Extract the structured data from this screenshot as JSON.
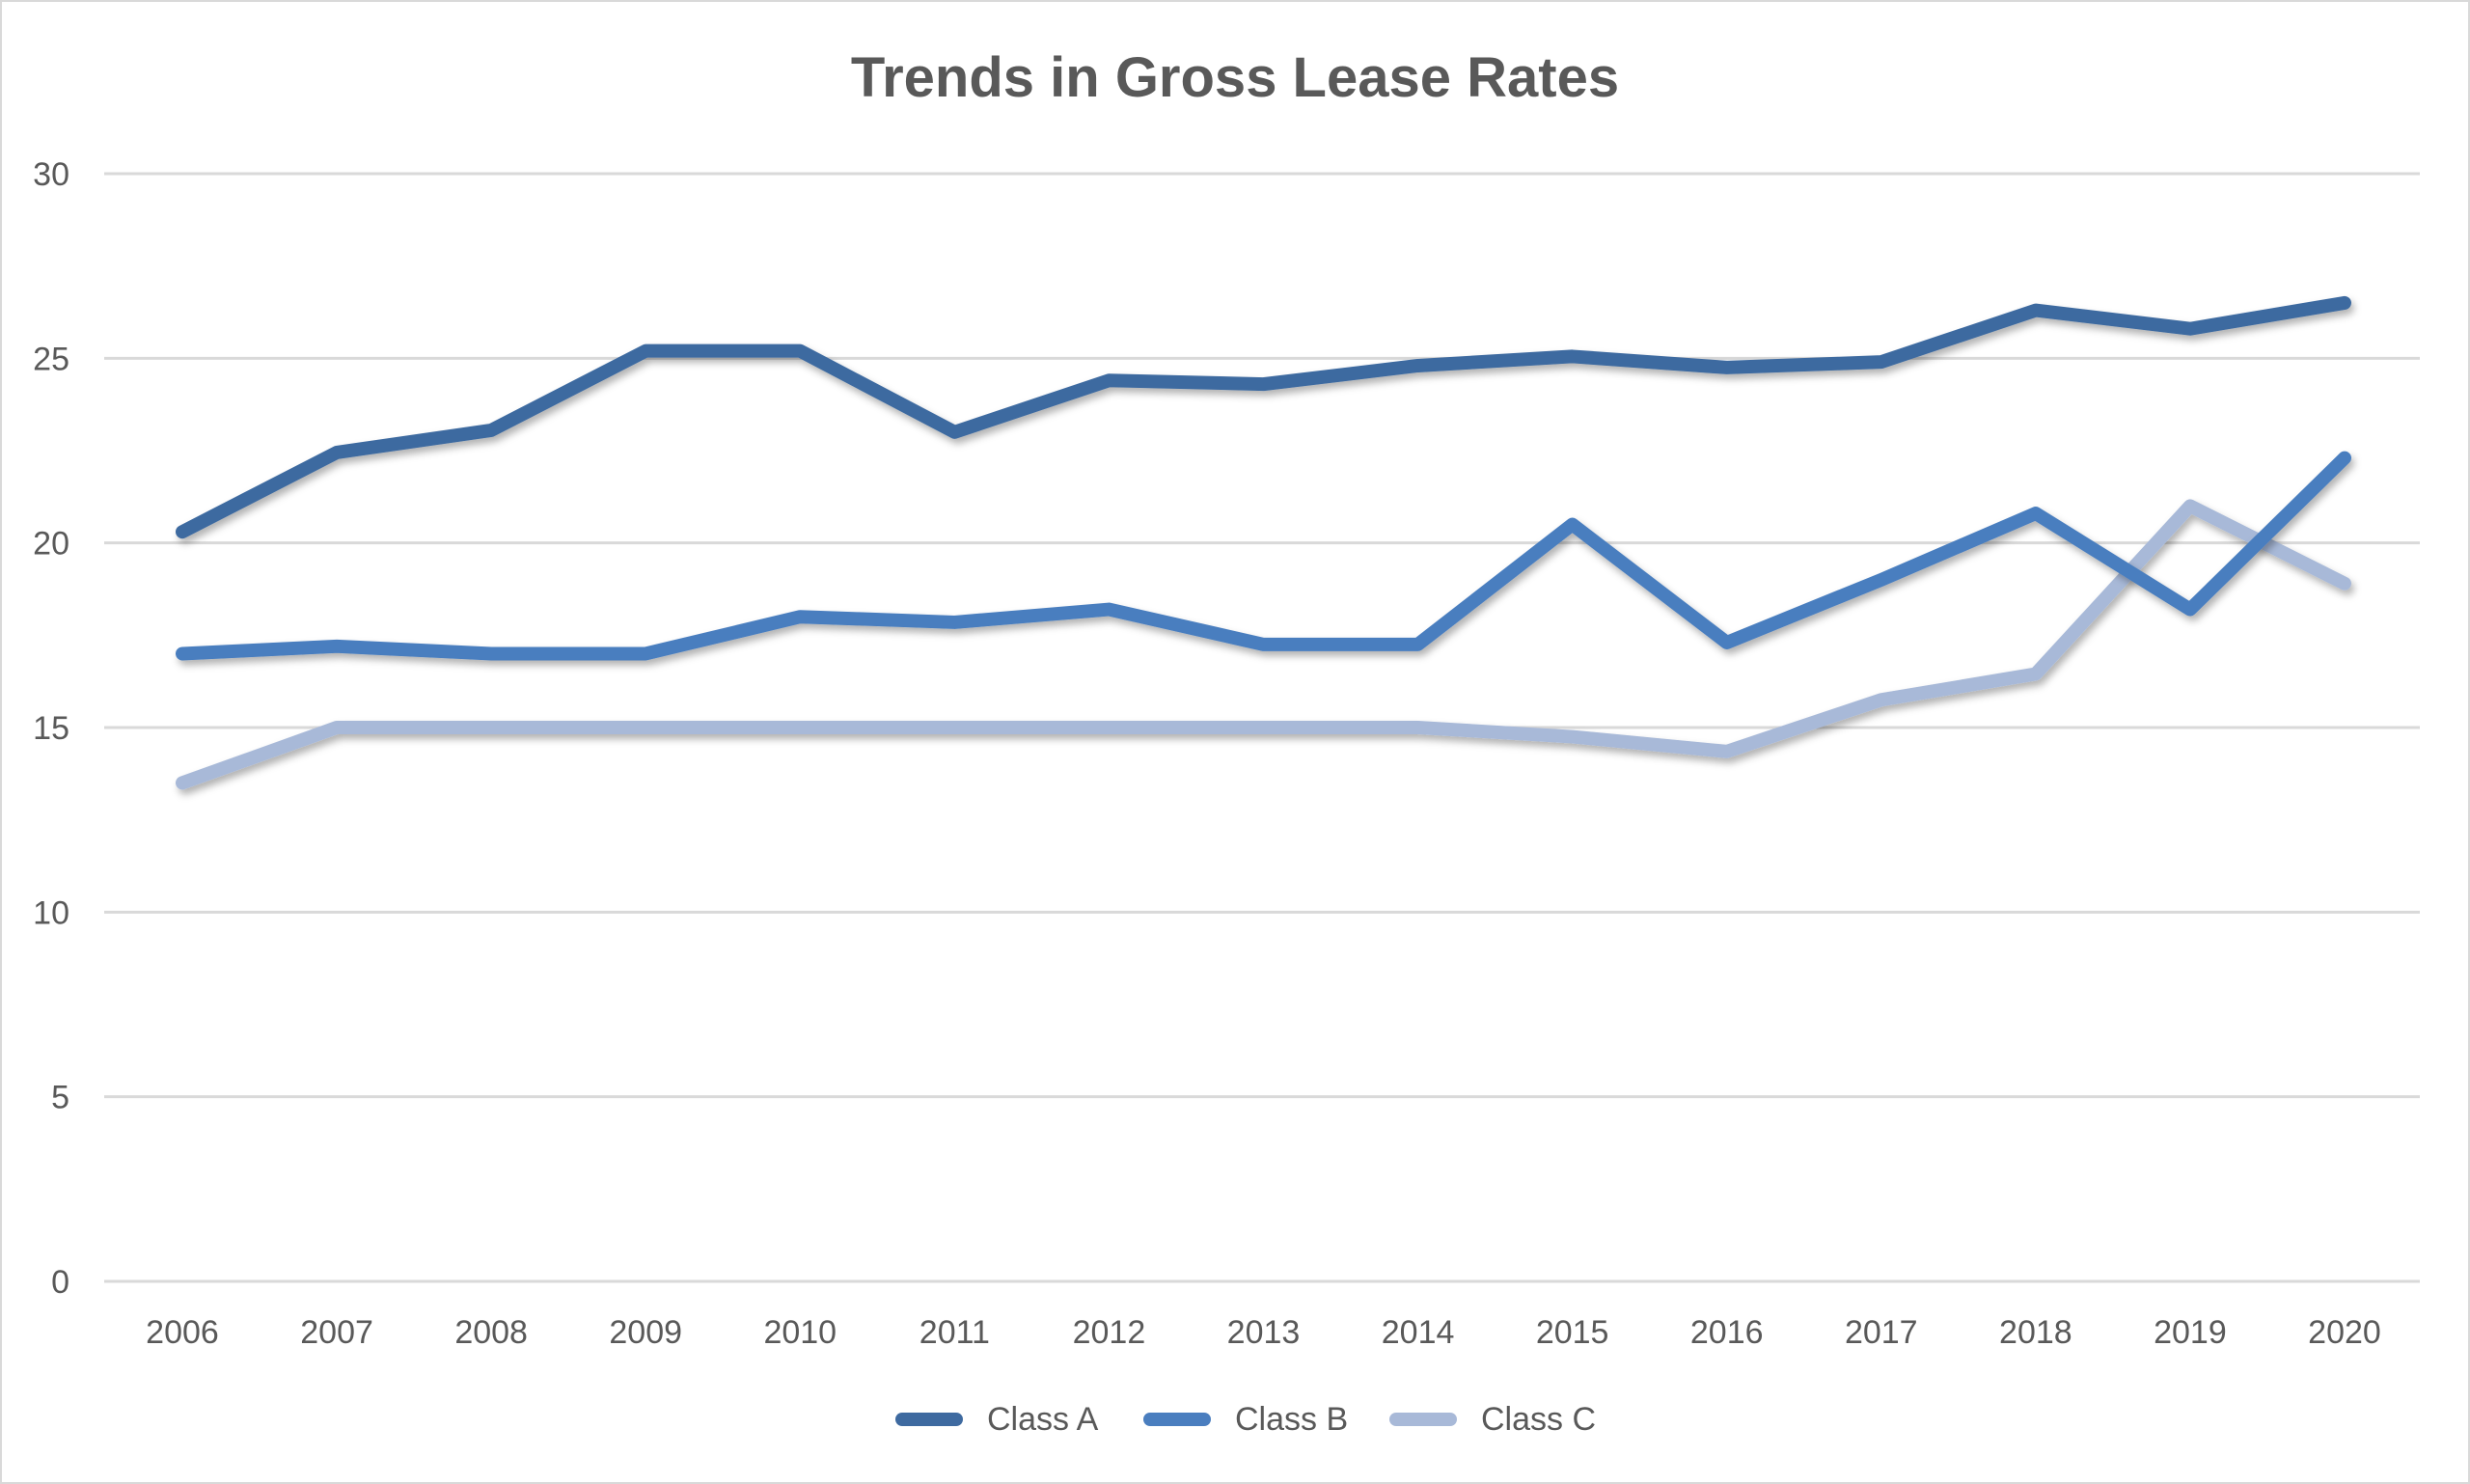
{
  "chart_data": {
    "type": "line",
    "title": "Trends in Gross Lease Rates",
    "xlabel": "",
    "ylabel": "",
    "categories": [
      "2006",
      "2007",
      "2008",
      "2009",
      "2010",
      "2011",
      "2012",
      "2013",
      "2014",
      "2015",
      "2016",
      "2017",
      "2018",
      "2019",
      "2020"
    ],
    "ylim": [
      0,
      30
    ],
    "yticks": [
      0,
      5,
      10,
      15,
      20,
      25,
      30
    ],
    "grid": true,
    "legend": "bottom",
    "series": [
      {
        "name": "Class A",
        "color": "#3e6aa0",
        "values": [
          20.3,
          22.45,
          23.05,
          25.2,
          25.2,
          23.0,
          24.4,
          24.3,
          24.8,
          25.05,
          24.75,
          24.9,
          26.3,
          25.8,
          26.5
        ]
      },
      {
        "name": "Class B",
        "color": "#4a7ebf",
        "values": [
          17.0,
          17.2,
          17.0,
          17.0,
          18.0,
          17.85,
          18.2,
          17.25,
          17.25,
          20.5,
          17.3,
          19.0,
          20.8,
          18.2,
          22.3
        ]
      },
      {
        "name": "Class C",
        "color": "#a8b9d8",
        "values": [
          13.5,
          15.0,
          15.0,
          15.0,
          15.0,
          15.0,
          15.0,
          15.0,
          15.0,
          14.75,
          14.35,
          15.75,
          16.45,
          21.0,
          18.9
        ]
      }
    ]
  }
}
